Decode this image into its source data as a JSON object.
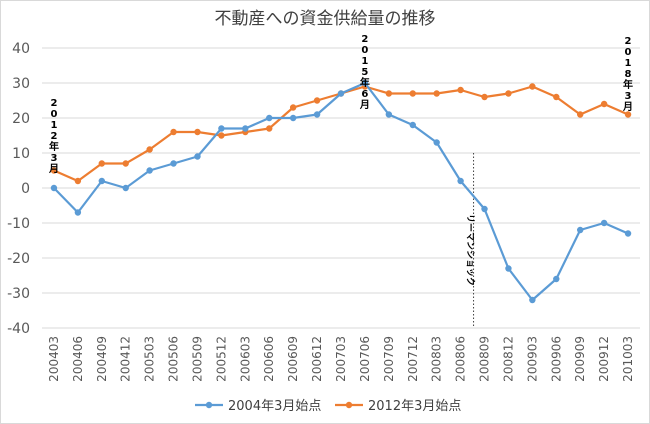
{
  "chart_data": {
    "type": "line",
    "title": "不動産への資金供給量の推移",
    "xlabel": "",
    "ylabel": "",
    "ylim": [
      -40,
      40
    ],
    "yticks": [
      40,
      30,
      20,
      10,
      0,
      -10,
      -20,
      -30,
      -40
    ],
    "grid": true,
    "legend_position": "bottom",
    "categories": [
      "200403",
      "200406",
      "200409",
      "200412",
      "200503",
      "200506",
      "200509",
      "200512",
      "200603",
      "200606",
      "200609",
      "200612",
      "200703",
      "200706",
      "200709",
      "200712",
      "200803",
      "200806",
      "200809",
      "200812",
      "200903",
      "200906",
      "200909",
      "200912",
      "201003"
    ],
    "series": [
      {
        "name": "2004年3月始点",
        "color": "#5B9BD5",
        "values": [
          0,
          -7,
          2,
          0,
          5,
          7,
          9,
          17,
          17,
          20,
          20,
          21,
          27,
          30,
          21,
          18,
          13,
          2,
          -6,
          -23,
          -32,
          -26,
          -12,
          -10,
          -13
        ]
      },
      {
        "name": "2012年3月始点",
        "color": "#ED7D31",
        "values": [
          5,
          2,
          7,
          7,
          11,
          16,
          16,
          15,
          16,
          17,
          23,
          25,
          27,
          29,
          27,
          27,
          27,
          28,
          26,
          27,
          29,
          26,
          21,
          24,
          21
        ]
      }
    ],
    "annotations": [
      {
        "text": "2012年3月",
        "category_index": 0
      },
      {
        "text": "2015年6月",
        "category_index": 13
      },
      {
        "text": "2018年3月",
        "category_index": 24
      },
      {
        "text": "リーマンショック",
        "category_index": 17
      }
    ]
  }
}
